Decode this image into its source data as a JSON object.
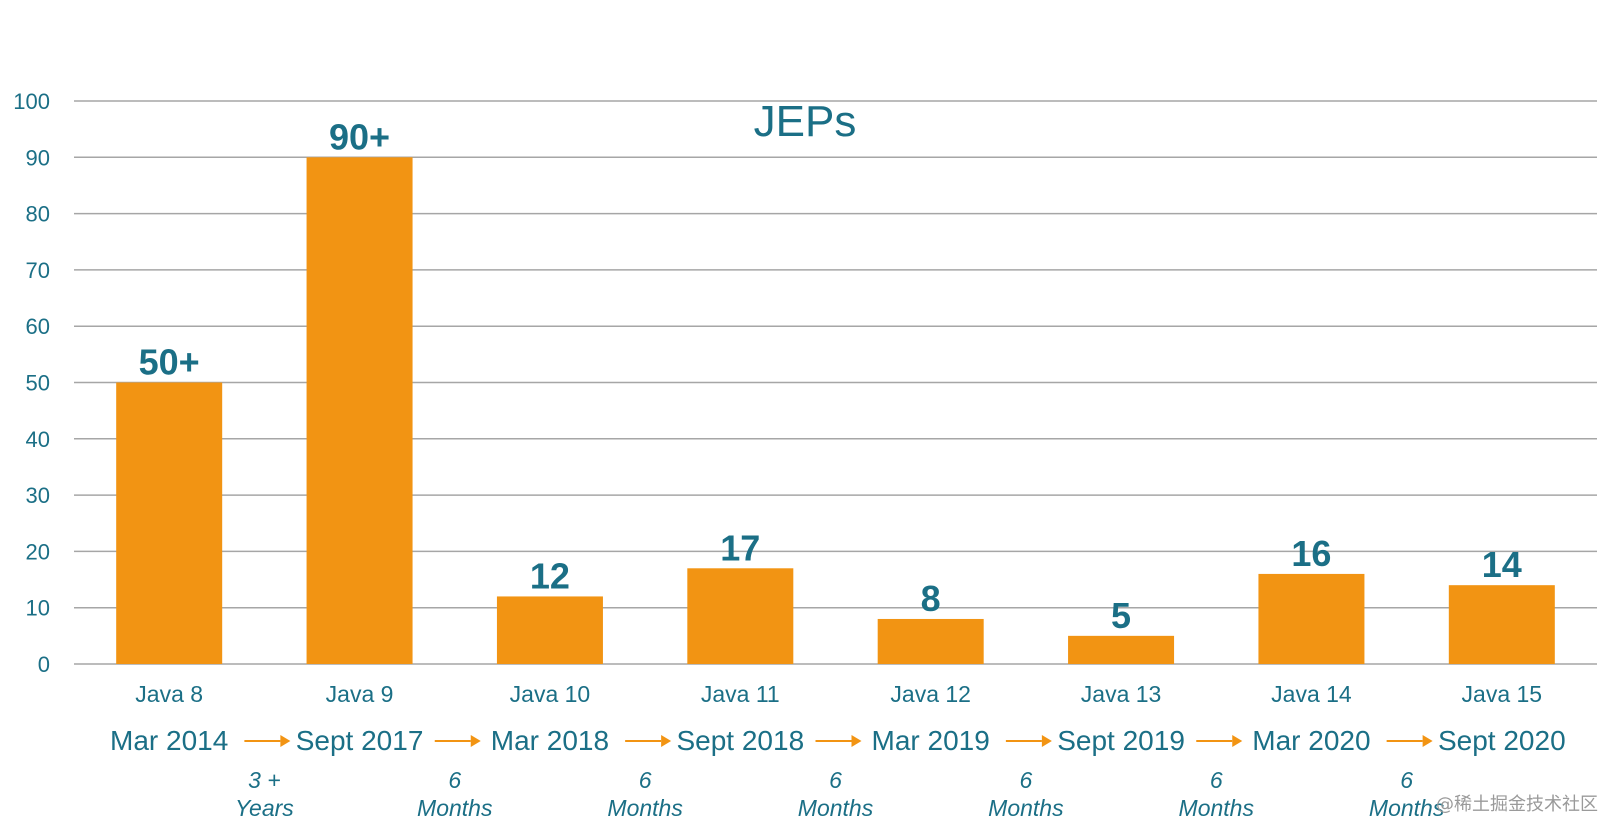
{
  "chart_data": {
    "type": "bar",
    "title": "JEPs",
    "categories": [
      "Java 8",
      "Java 9",
      "Java 10",
      "Java 11",
      "Java 12",
      "Java 13",
      "Java 14",
      "Java 15"
    ],
    "values": [
      50,
      90,
      12,
      17,
      8,
      5,
      16,
      14
    ],
    "data_labels": [
      "50+",
      "90+",
      "12",
      "17",
      "8",
      "5",
      "16",
      "14"
    ],
    "release_dates": [
      "Mar 2014",
      "Sept 2017",
      "Mar 2018",
      "Sept 2018",
      "Mar 2019",
      "Sept 2019",
      "Mar 2020",
      "Sept 2020"
    ],
    "release_gaps": [
      {
        "line1": "3 +",
        "line2": "Years"
      },
      {
        "line1": "6",
        "line2": "Months"
      },
      {
        "line1": "6",
        "line2": "Months"
      },
      {
        "line1": "6",
        "line2": "Months"
      },
      {
        "line1": "6",
        "line2": "Months"
      },
      {
        "line1": "6",
        "line2": "Months"
      },
      {
        "line1": "6",
        "line2": "Months"
      }
    ],
    "ylim": [
      0,
      100
    ],
    "yticks": [
      0,
      10,
      20,
      30,
      40,
      50,
      60,
      70,
      80,
      90,
      100
    ],
    "grid": true,
    "colors": {
      "bar": "#f29413",
      "text": "#1b6f86",
      "grid": "#a6a6a6"
    }
  },
  "watermark": "@稀土掘金技术社区"
}
